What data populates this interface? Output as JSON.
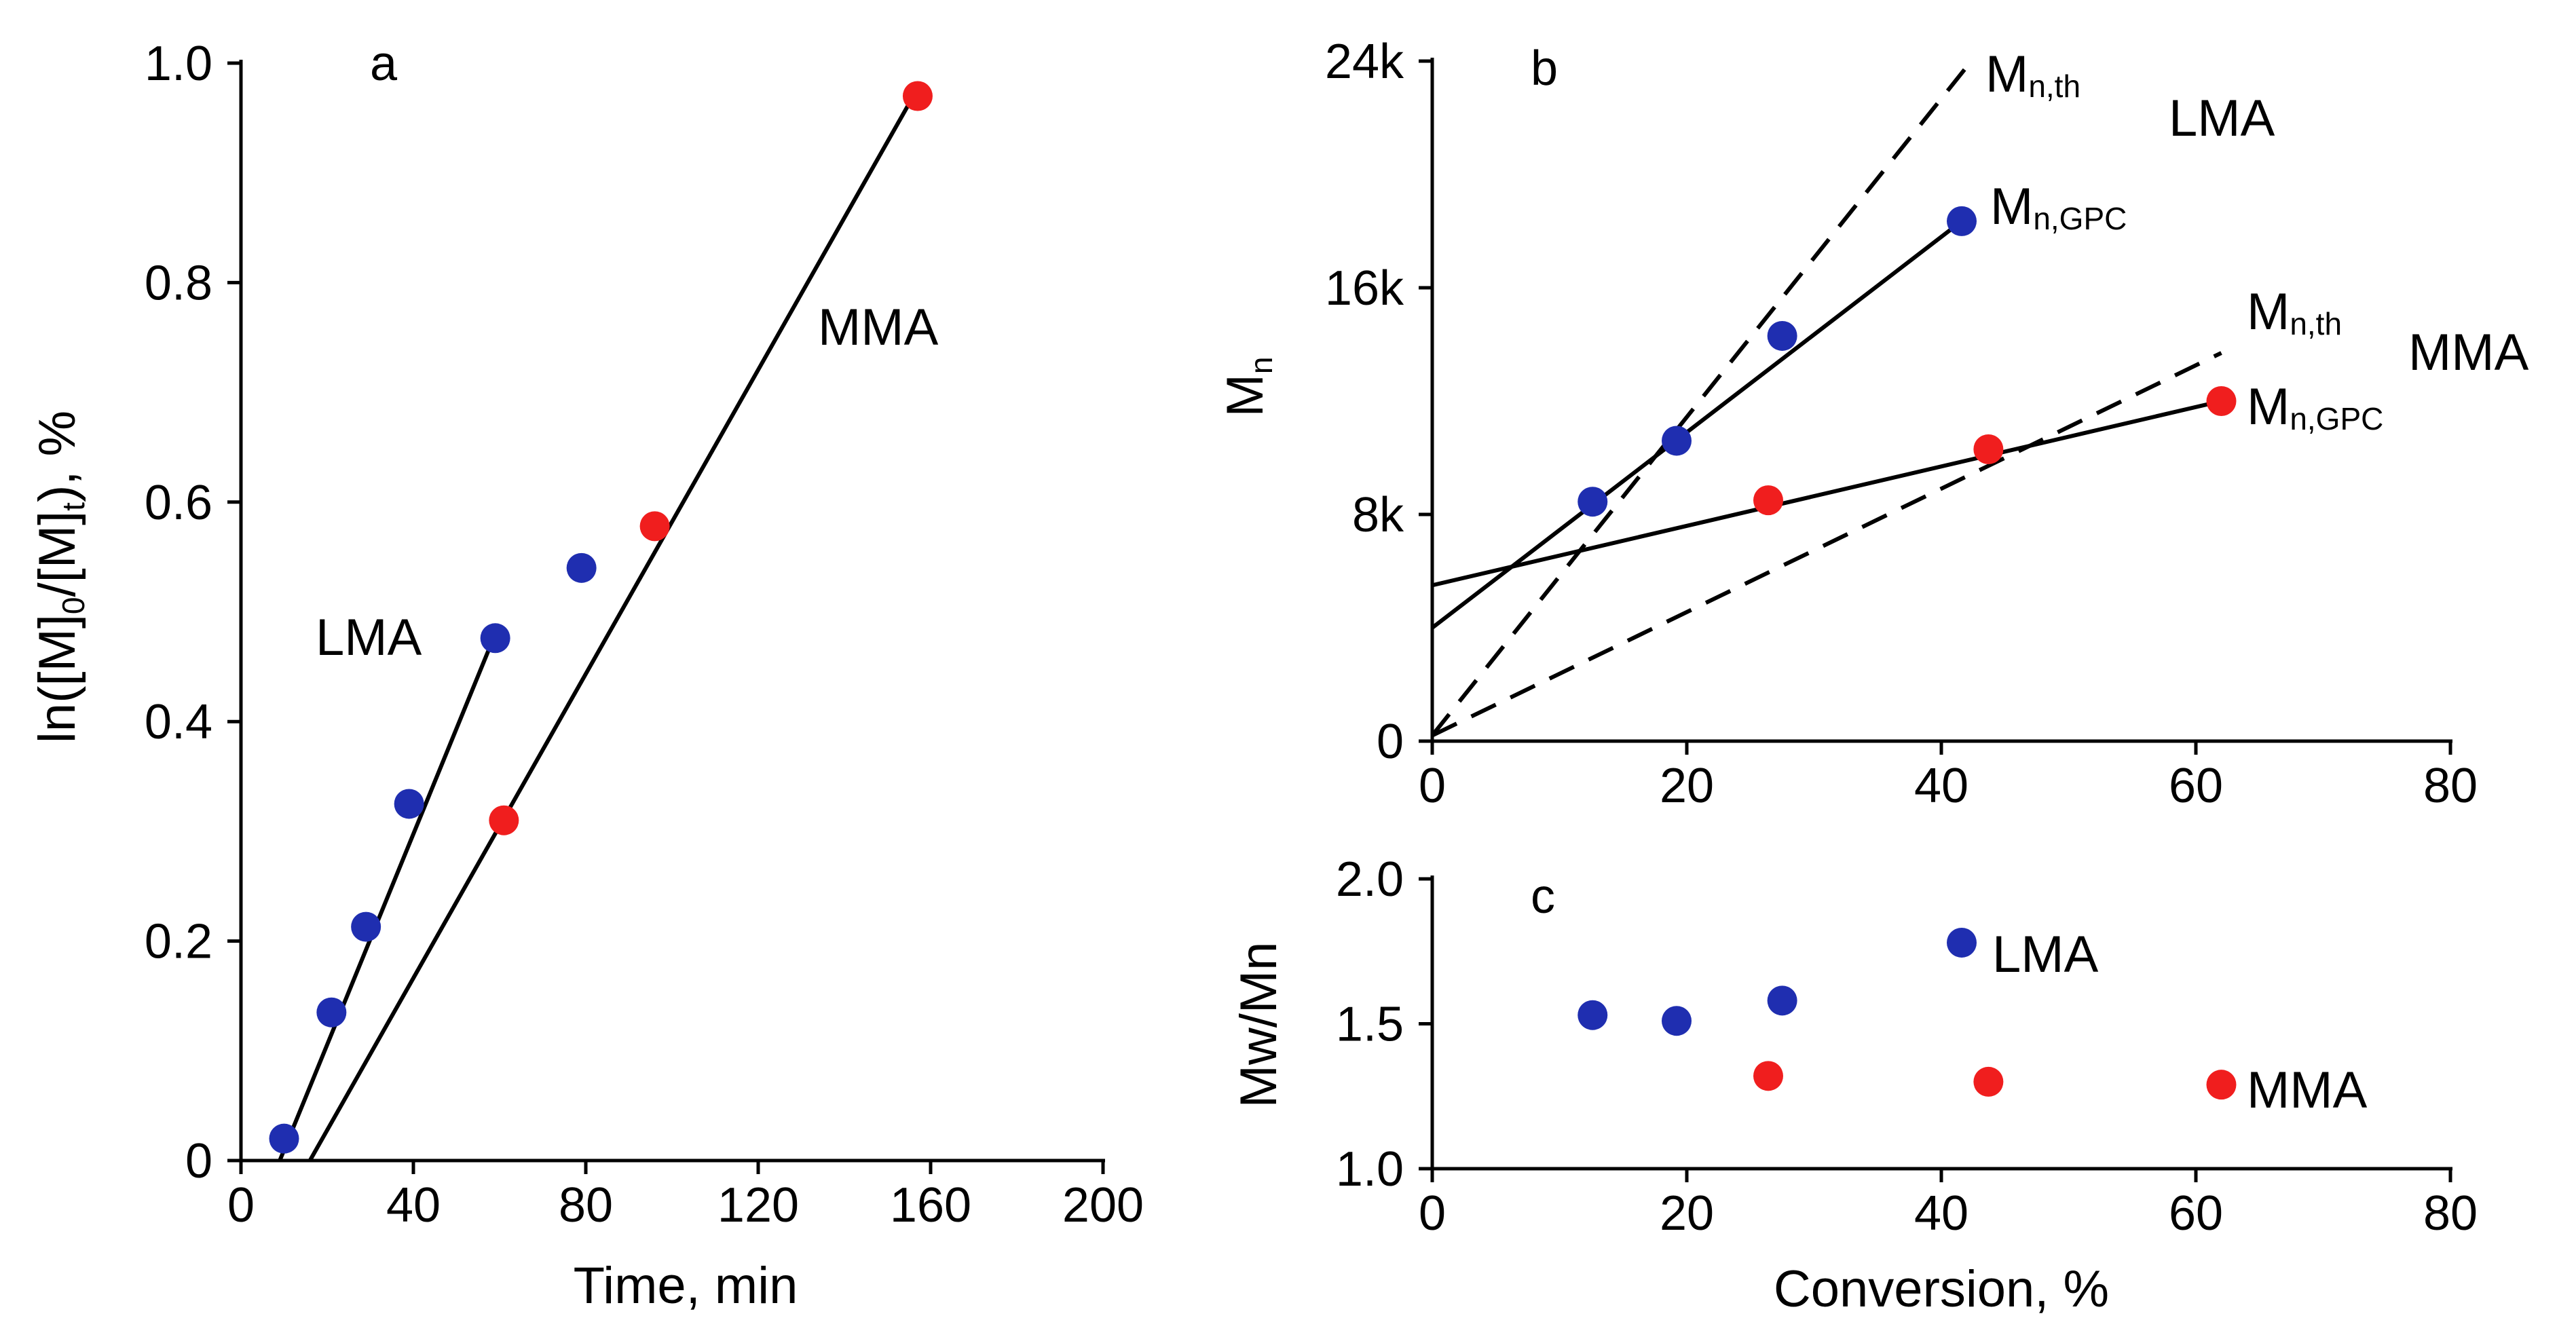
{
  "chart_data": [
    {
      "panel": "a",
      "type": "scatter",
      "xlabel": "Time, min",
      "ylabel": "ln([M]0/[M]t), %",
      "xlim": [
        0,
        200
      ],
      "ylim": [
        0,
        1.0
      ],
      "xticks": [
        0,
        40,
        80,
        120,
        160,
        200
      ],
      "yticks": [
        0,
        0.2,
        0.4,
        0.6,
        0.8,
        1.0
      ],
      "ytick_labels": [
        "0",
        "0.2",
        "0.4",
        "0.6",
        "0.8",
        "1.0"
      ],
      "series": [
        {
          "name": "LMA",
          "color": "#1f2eb0",
          "x": [
            10,
            21,
            29,
            39,
            59,
            79
          ],
          "y": [
            0.02,
            0.135,
            0.213,
            0.325,
            0.476,
            0.54
          ],
          "fit": [
            [
              9,
              0.0
            ],
            [
              59,
              0.48
            ]
          ]
        },
        {
          "name": "MMA",
          "color": "#f01e1e",
          "x": [
            61,
            96,
            157
          ],
          "y": [
            0.31,
            0.578,
            0.97
          ],
          "fit": [
            [
              16,
              0.0
            ],
            [
              156,
              0.97
            ]
          ]
        }
      ]
    },
    {
      "panel": "b",
      "type": "scatter",
      "xlabel": "",
      "ylabel": "Mn",
      "xlim": [
        0,
        80
      ],
      "ylim": [
        0,
        24000
      ],
      "xticks": [
        0,
        20,
        40,
        60,
        80
      ],
      "yticks": [
        0,
        8000,
        16000,
        24000
      ],
      "ytick_labels": [
        "0",
        "8k",
        "16k",
        "24k"
      ],
      "series": [
        {
          "name": "LMA",
          "color": "#1f2eb0",
          "x": [
            12.6,
            19.2,
            27.5,
            41.6
          ],
          "y": [
            8450,
            10600,
            14300,
            18350
          ],
          "fit": [
            [
              0,
              4000
            ],
            [
              41.6,
              18350
            ]
          ],
          "theory": [
            [
              0,
              200
            ],
            [
              42,
              23800
            ]
          ]
        },
        {
          "name": "MMA",
          "color": "#f01e1e",
          "x": [
            26.4,
            43.7,
            62
          ],
          "y": [
            8500,
            10300,
            12000
          ],
          "fit": [
            [
              0,
              5500
            ],
            [
              62,
              12000
            ]
          ],
          "theory": [
            [
              0,
              200
            ],
            [
              62,
              13700
            ]
          ]
        }
      ]
    },
    {
      "panel": "c",
      "type": "scatter",
      "xlabel": "Conversion, %",
      "ylabel": "Mw/Mn",
      "xlim": [
        0,
        80
      ],
      "ylim": [
        1.0,
        2.0
      ],
      "xticks": [
        0,
        20,
        40,
        60,
        80
      ],
      "yticks": [
        1.0,
        1.5,
        2.0
      ],
      "ytick_labels": [
        "1.0",
        "1.5",
        "2.0"
      ],
      "series": [
        {
          "name": "LMA",
          "color": "#1f2eb0",
          "x": [
            12.6,
            19.2,
            27.5,
            41.6
          ],
          "y": [
            1.53,
            1.51,
            1.58,
            1.78
          ]
        },
        {
          "name": "MMA",
          "color": "#f01e1e",
          "x": [
            26.4,
            43.7,
            62
          ],
          "y": [
            1.32,
            1.3,
            1.29
          ]
        }
      ]
    }
  ],
  "labels": {
    "panel_a": "a",
    "panel_b": "b",
    "panel_c": "c",
    "a_lma": "LMA",
    "a_mma": "MMA",
    "b_lma": "LMA",
    "b_mma": "MMA",
    "c_lma": "LMA",
    "c_mma": "MMA",
    "mn_base": "M",
    "mn_th_sub": "n,th",
    "mn_gpc_sub": "n,GPC",
    "ylabel_a_parts": [
      "ln([M]",
      "0",
      "/[M]",
      "t",
      "), %"
    ],
    "ylabel_b_parts": [
      "M",
      "n"
    ],
    "xlabel_a": "Time, min",
    "xlabel_c": "Conversion, %",
    "ylabel_c": "Mw/Mn"
  }
}
